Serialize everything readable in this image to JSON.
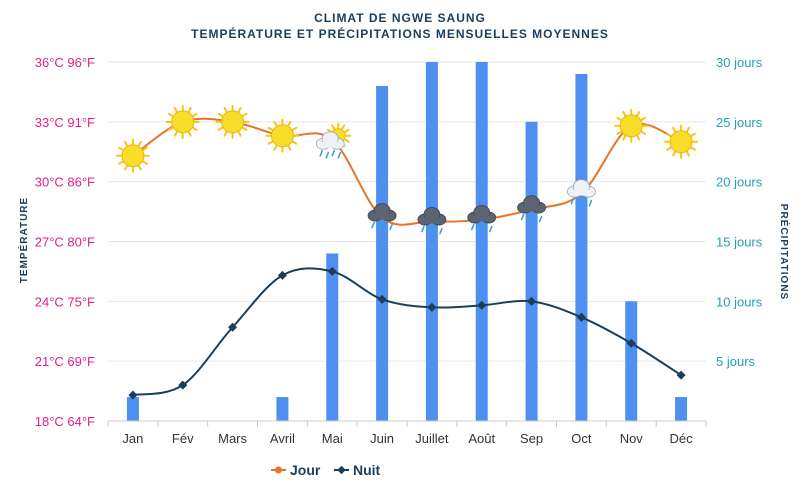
{
  "colors": {
    "day": "#e8742a",
    "night": "#1d3f56",
    "bars": "#4f8ff0",
    "left_axis": "#e0218a",
    "right_axis": "#26a0b4",
    "title": "#1c3d5a",
    "grid": "#e6e6e6"
  },
  "chart_data": {
    "type": "line",
    "title": "CLIMAT DE NGWE SAUNG",
    "subtitle": "TEMPÉRATURE ET PRÉCIPITATIONS MENSUELLES MOYENNES",
    "ylabel_left": "TEMPÉRATURE",
    "ylabel_right": "PRÉCIPITATIONS",
    "categories": [
      "Jan",
      "Fév",
      "Mars",
      "Avril",
      "Mai",
      "Juin",
      "Juillet",
      "Août",
      "Sep",
      "Oct",
      "Nov",
      "Déc"
    ],
    "y_left_ticks": [
      {
        "value": 36,
        "label": "36°C 96°F"
      },
      {
        "value": 33,
        "label": "33°C 91°F"
      },
      {
        "value": 30,
        "label": "30°C 86°F"
      },
      {
        "value": 27,
        "label": "27°C 80°F"
      },
      {
        "value": 24,
        "label": "24°C 75°F"
      },
      {
        "value": 21,
        "label": "21°C 69°F"
      },
      {
        "value": 18,
        "label": "18°C 64°F"
      }
    ],
    "y_right_ticks": [
      {
        "value": 30,
        "label": "30 jours"
      },
      {
        "value": 25,
        "label": "25 jours"
      },
      {
        "value": 20,
        "label": "20 jours"
      },
      {
        "value": 15,
        "label": "15 jours"
      },
      {
        "value": 10,
        "label": "10 jours"
      },
      {
        "value": 5,
        "label": "5 jours"
      }
    ],
    "ylim_left": [
      18,
      36
    ],
    "ylim_right": [
      0,
      30
    ],
    "grid": true,
    "legend_placement": "bottom",
    "series": [
      {
        "name": "Jour",
        "axis": "left",
        "kind": "line",
        "values": [
          31.3,
          33.0,
          33.0,
          32.3,
          32.1,
          28.2,
          28.0,
          28.1,
          28.6,
          29.4,
          32.8,
          32.0
        ],
        "icons": [
          "sun-icon",
          "sun-icon",
          "sun-icon",
          "sun-icon",
          "partly-cloudy-rain-icon",
          "storm-cloud-icon",
          "storm-cloud-icon",
          "storm-cloud-icon",
          "storm-cloud-icon",
          "rain-cloud-icon",
          "sun-icon",
          "sun-icon"
        ]
      },
      {
        "name": "Nuit",
        "axis": "left",
        "kind": "line",
        "values": [
          19.3,
          19.8,
          22.7,
          25.3,
          25.5,
          24.1,
          23.7,
          23.8,
          24.0,
          23.2,
          21.9,
          20.3
        ]
      },
      {
        "axis": "right",
        "kind": "bar",
        "values": [
          2,
          0,
          0,
          2,
          14,
          28,
          30,
          30,
          25,
          29,
          10,
          2
        ]
      }
    ]
  }
}
